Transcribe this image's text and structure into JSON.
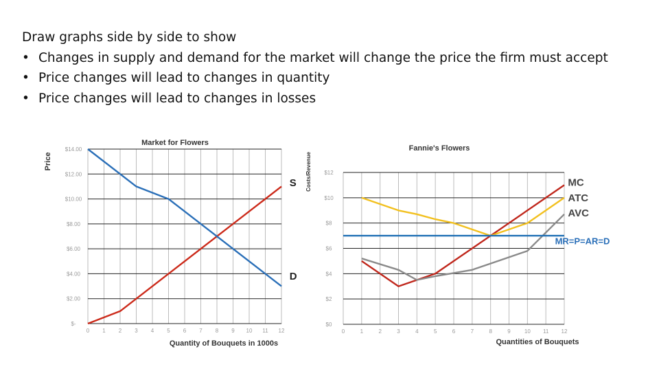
{
  "slide": {
    "intro": "Draw graphs side by side to show",
    "bullets": [
      "Changes in supply and demand for the market will change the price the firm must accept",
      "Price changes will lead to changes in quantity",
      "Price changes will lead to changes in losses"
    ],
    "bullet_symbol": "•"
  },
  "chart_data": [
    {
      "type": "line",
      "title": "Market for Flowers",
      "xlabel": "Quantity of Bouquets in 1000s",
      "ylabel": "Price",
      "xlim": [
        0,
        12
      ],
      "ylim": [
        0,
        14
      ],
      "x_ticks": [
        0,
        1,
        2,
        3,
        4,
        5,
        6,
        7,
        8,
        9,
        10,
        11,
        12
      ],
      "y_ticks": [
        0,
        2,
        4,
        6,
        8,
        10,
        12,
        14
      ],
      "y_tick_labels": [
        "$-",
        "$2.00",
        "$4.00",
        "$6.00",
        "$8.00",
        "$10.00",
        "$12.00",
        "$14.00"
      ],
      "series": [
        {
          "name": "S",
          "color": "#cc2a1a",
          "points": [
            [
              0,
              0
            ],
            [
              2,
              1
            ],
            [
              12,
              11
            ]
          ]
        },
        {
          "name": "D",
          "color": "#2a6fb8",
          "points": [
            [
              0,
              14
            ],
            [
              3,
              11
            ],
            [
              5,
              10
            ],
            [
              12,
              3
            ]
          ]
        }
      ],
      "curve_labels": [
        {
          "text": "S",
          "color": "#222222",
          "at": [
            12.5,
            11.3
          ]
        },
        {
          "text": "D",
          "color": "#222222",
          "at": [
            12.5,
            3.8
          ]
        }
      ]
    },
    {
      "type": "line",
      "title": "Fannie's Flowers",
      "xlabel": "Quantities of Bouquets",
      "ylabel": "Costs/Revenue",
      "xlim": [
        0,
        12
      ],
      "ylim": [
        0,
        12
      ],
      "x_ticks": [
        0,
        1,
        2,
        3,
        4,
        5,
        6,
        7,
        8,
        9,
        10,
        11,
        12
      ],
      "y_ticks": [
        0,
        2,
        4,
        6,
        8,
        10,
        12
      ],
      "y_tick_labels": [
        "$0",
        "$2",
        "$4",
        "$6",
        "$8",
        "$10",
        "$12"
      ],
      "series": [
        {
          "name": "MC",
          "color": "#c0271c",
          "points": [
            [
              1,
              5
            ],
            [
              3,
              3
            ],
            [
              5,
              4
            ],
            [
              12,
              11
            ]
          ]
        },
        {
          "name": "ATC",
          "color": "#f2c01e",
          "points": [
            [
              1,
              10
            ],
            [
              3,
              9
            ],
            [
              4,
              8.7
            ],
            [
              5,
              8.3
            ],
            [
              6,
              8
            ],
            [
              8,
              7
            ],
            [
              10,
              8
            ],
            [
              12,
              10
            ]
          ]
        },
        {
          "name": "AVC",
          "color": "#8a8a8a",
          "points": [
            [
              1,
              5.2
            ],
            [
              3,
              4.3
            ],
            [
              4,
              3.5
            ],
            [
              5,
              3.8
            ],
            [
              7,
              4.3
            ],
            [
              10,
              5.8
            ],
            [
              12,
              8.7
            ]
          ]
        },
        {
          "name": "MR=P=AR=D",
          "color": "#1e6fb4",
          "points": [
            [
              0,
              7
            ],
            [
              12,
              7
            ]
          ]
        }
      ],
      "curve_labels": [
        {
          "text": "MC",
          "color": "#444444",
          "at": [
            12.2,
            11.2
          ]
        },
        {
          "text": "ATC",
          "color": "#444444",
          "at": [
            12.2,
            10.0
          ]
        },
        {
          "text": "AVC",
          "color": "#444444",
          "at": [
            12.2,
            8.8
          ]
        },
        {
          "text": "MR=P=AR=D",
          "color": "#2a6fb8",
          "at": [
            11.5,
            6.6
          ]
        }
      ]
    }
  ]
}
